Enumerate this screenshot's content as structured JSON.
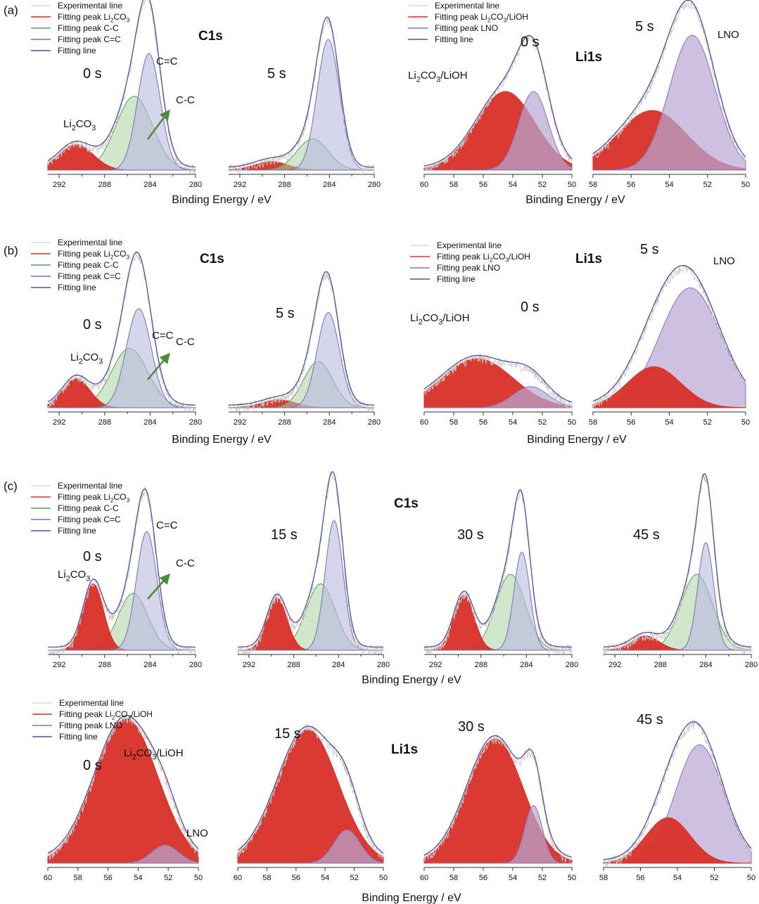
{
  "colors": {
    "experimental": "#c8c8c8",
    "li2co3": "#d73027",
    "cc": "#a9d3a0",
    "cc_line": "#5e9a5e",
    "ceqc": "#b9b9e0",
    "ceqc_line": "#7070b8",
    "lno": "#b8a6d6",
    "lno_line": "#8a70b8",
    "fitting": "#5a4f9a",
    "arrow": "#4c8a3c"
  },
  "chart_data": [
    {
      "id": "a-c1s-0s",
      "type": "line",
      "panel": "(a)",
      "element": "C1s",
      "title": "C1s",
      "time_label": "0 s",
      "xlabel": "Binding Energy / eV",
      "x_ticks": [
        292,
        290,
        288,
        286,
        284,
        282,
        280
      ],
      "x_tick_labels": [
        "292",
        "288",
        "284",
        "280"
      ],
      "xlim": [
        293,
        280
      ],
      "ylim": [
        0,
        1.0
      ],
      "legend": [
        "Experimental line",
        "Fitting peak Li2CO3",
        "Fitting peak C-C",
        "Fitting peak C=C",
        "Fitting line"
      ],
      "annotations": [
        "Li2CO3",
        "C=C",
        "C-C"
      ],
      "peaks": [
        {
          "component": "Li2CO3",
          "center": 290.5,
          "height": 0.18,
          "width": 1.5
        },
        {
          "component": "C-C",
          "center": 285.4,
          "height": 0.52,
          "width": 1.6
        },
        {
          "component": "C=C",
          "center": 284.1,
          "height": 0.82,
          "width": 1.0
        }
      ]
    },
    {
      "id": "a-c1s-5s",
      "type": "line",
      "panel": "(a)",
      "element": "C1s",
      "time_label": "5 s",
      "xlabel": "Binding Energy / eV",
      "x_ticks": [
        292,
        290,
        288,
        286,
        284,
        282,
        280
      ],
      "x_tick_labels": [
        "292",
        "288",
        "284",
        "280"
      ],
      "xlim": [
        293,
        280
      ],
      "ylim": [
        0,
        1.0
      ],
      "peaks": [
        {
          "component": "Li2CO3",
          "center": 289.2,
          "height": 0.06,
          "width": 1.5
        },
        {
          "component": "C-C",
          "center": 285.5,
          "height": 0.22,
          "width": 1.4
        },
        {
          "component": "C=C",
          "center": 284.1,
          "height": 0.92,
          "width": 1.0
        }
      ]
    },
    {
      "id": "a-li1s-0s",
      "type": "line",
      "panel": "(a)",
      "element": "Li1s",
      "title": "Li1s",
      "time_label": "0 s",
      "xlabel": "Binding Energy / eV",
      "x_ticks": [
        60,
        58,
        56,
        54,
        52,
        50
      ],
      "x_tick_labels": [
        "60",
        "58",
        "56",
        "54",
        "52",
        "50"
      ],
      "xlim": [
        60,
        50
      ],
      "ylim": [
        0,
        1.0
      ],
      "legend": [
        "Experimental line",
        "Fitting peak Li2CO3/LiOH",
        "Fitting peak LNO",
        "Fitting line"
      ],
      "annotations": [
        "Li2CO3/LiOH"
      ],
      "peaks": [
        {
          "component": "Li2CO3/LiOH",
          "center": 54.5,
          "height": 0.65,
          "width": 2.0
        },
        {
          "component": "LNO",
          "center": 52.6,
          "height": 0.65,
          "width": 1.0
        }
      ]
    },
    {
      "id": "a-li1s-5s",
      "type": "line",
      "panel": "(a)",
      "element": "Li1s",
      "time_label": "5 s",
      "xlabel": "Binding Energy / eV",
      "x_ticks": [
        58,
        56,
        54,
        52,
        50
      ],
      "x_tick_labels": [
        "58",
        "56",
        "54",
        "52",
        "50"
      ],
      "xlim": [
        58,
        50
      ],
      "ylim": [
        0,
        1.0
      ],
      "annotations": [
        "LNO"
      ],
      "peaks": [
        {
          "component": "Li2CO3/LiOH",
          "center": 54.9,
          "height": 0.42,
          "width": 1.8
        },
        {
          "component": "LNO",
          "center": 52.8,
          "height": 0.95,
          "width": 1.2
        }
      ]
    },
    {
      "id": "b-c1s-0s",
      "type": "line",
      "panel": "(b)",
      "element": "C1s",
      "title": "C1s",
      "time_label": "0 s",
      "xlabel": "Binding Energy / eV",
      "x_ticks": [
        292,
        290,
        288,
        286,
        284,
        282,
        280
      ],
      "x_tick_labels": [
        "292",
        "288",
        "284",
        "280"
      ],
      "xlim": [
        293,
        280
      ],
      "ylim": [
        0,
        1.0
      ],
      "legend": [
        "Experimental line",
        "Fitting peak Li2CO3",
        "Fitting peak C-C",
        "Fitting peak C=C",
        "Fitting line"
      ],
      "annotations": [
        "Li2CO3",
        "C=C",
        "C-C"
      ],
      "peaks": [
        {
          "component": "Li2CO3",
          "center": 290.5,
          "height": 0.22,
          "width": 1.2
        },
        {
          "component": "C-C",
          "center": 285.8,
          "height": 0.45,
          "width": 1.6
        },
        {
          "component": "C=C",
          "center": 285.0,
          "height": 0.75,
          "width": 1.1
        }
      ]
    },
    {
      "id": "b-c1s-5s",
      "type": "line",
      "panel": "(b)",
      "element": "C1s",
      "time_label": "5 s",
      "xlabel": "Binding Energy / eV",
      "x_ticks": [
        292,
        290,
        288,
        286,
        284,
        282,
        280
      ],
      "x_tick_labels": [
        "292",
        "288",
        "284",
        "280"
      ],
      "xlim": [
        293,
        280
      ],
      "ylim": [
        0,
        1.0
      ],
      "peaks": [
        {
          "component": "Li2CO3",
          "center": 288.5,
          "height": 0.06,
          "width": 1.5
        },
        {
          "component": "C-C",
          "center": 285.0,
          "height": 0.35,
          "width": 1.3
        },
        {
          "component": "C=C",
          "center": 284.1,
          "height": 0.72,
          "width": 1.0
        }
      ]
    },
    {
      "id": "b-li1s-0s",
      "type": "line",
      "panel": "(b)",
      "element": "Li1s",
      "title": "Li1s",
      "time_label": "0 s",
      "xlabel": "Binding Energy / eV",
      "x_ticks": [
        60,
        58,
        56,
        54,
        52,
        50
      ],
      "x_tick_labels": [
        "60",
        "58",
        "56",
        "54",
        "52",
        "50"
      ],
      "xlim": [
        60,
        50
      ],
      "ylim": [
        0,
        1.0
      ],
      "legend": [
        "Experimental line",
        "Fitting peak Li2CO3/LiOH",
        "Fitting peak LNO",
        "Fitting line"
      ],
      "annotations": [
        "Li2CO3/LiOH"
      ],
      "peaks": [
        {
          "component": "Li2CO3/LiOH",
          "center": 56.4,
          "height": 0.35,
          "width": 2.4
        },
        {
          "component": "LNO",
          "center": 52.8,
          "height": 0.15,
          "width": 1.2
        }
      ]
    },
    {
      "id": "b-li1s-5s",
      "type": "line",
      "panel": "(b)",
      "element": "Li1s",
      "time_label": "5 s",
      "xlabel": "Binding Energy / eV",
      "x_ticks": [
        58,
        56,
        54,
        52,
        50
      ],
      "x_tick_labels": [
        "58",
        "56",
        "54",
        "52",
        "50"
      ],
      "xlim": [
        58,
        50
      ],
      "ylim": [
        0,
        1.0
      ],
      "annotations": [
        "LNO"
      ],
      "peaks": [
        {
          "component": "Li2CO3/LiOH",
          "center": 54.8,
          "height": 0.28,
          "width": 1.4
        },
        {
          "component": "LNO",
          "center": 52.9,
          "height": 0.82,
          "width": 1.6
        }
      ]
    },
    {
      "id": "c-c1s-0s",
      "type": "line",
      "panel": "(c)",
      "element": "C1s",
      "time_label": "0 s",
      "xlabel": "Binding Energy / eV",
      "x_ticks": [
        292,
        290,
        288,
        286,
        284,
        282,
        280
      ],
      "x_tick_labels": [
        "292",
        "288",
        "284",
        "280"
      ],
      "xlim": [
        293,
        280
      ],
      "ylim": [
        0,
        1.0
      ],
      "legend": [
        "Experimental line",
        "Fitting peak Li2CO3",
        "Fitting peak C-C",
        "Fitting peak C=C",
        "Fitting line"
      ],
      "annotations": [
        "Li2CO3",
        "C=C",
        "C-C"
      ],
      "peaks": [
        {
          "component": "Li2CO3",
          "center": 289.0,
          "height": 0.42,
          "width": 0.9
        },
        {
          "component": "C-C",
          "center": 285.5,
          "height": 0.36,
          "width": 1.3
        },
        {
          "component": "C=C",
          "center": 284.3,
          "height": 0.75,
          "width": 0.9
        }
      ]
    },
    {
      "id": "c-c1s-15s",
      "type": "line",
      "panel": "(c)",
      "element": "C1s",
      "title": "C1s",
      "time_label": "15 s",
      "xlabel": "",
      "x_ticks": [
        292,
        290,
        288,
        286,
        284,
        282,
        280
      ],
      "x_tick_labels": [
        "292",
        "288",
        "284",
        "280"
      ],
      "xlim": [
        293,
        280
      ],
      "ylim": [
        0,
        1.0
      ],
      "peaks": [
        {
          "component": "Li2CO3",
          "center": 289.5,
          "height": 0.33,
          "width": 0.9
        },
        {
          "component": "C-C",
          "center": 285.6,
          "height": 0.42,
          "width": 1.3
        },
        {
          "component": "C=C",
          "center": 284.4,
          "height": 0.82,
          "width": 0.8
        }
      ]
    },
    {
      "id": "c-c1s-30s",
      "type": "line",
      "panel": "(c)",
      "element": "C1s",
      "time_label": "30 s",
      "xlabel": "Binding Energy / eV",
      "x_ticks": [
        292,
        290,
        288,
        286,
        284,
        282,
        280
      ],
      "x_tick_labels": [
        "292",
        "288",
        "284",
        "280"
      ],
      "xlim": [
        293,
        280
      ],
      "ylim": [
        0,
        1.0
      ],
      "peaks": [
        {
          "component": "Li2CO3",
          "center": 289.5,
          "height": 0.35,
          "width": 0.9
        },
        {
          "component": "C-C",
          "center": 285.4,
          "height": 0.48,
          "width": 1.3
        },
        {
          "component": "C=C",
          "center": 284.4,
          "height": 0.62,
          "width": 0.7
        }
      ]
    },
    {
      "id": "c-c1s-45s",
      "type": "line",
      "panel": "(c)",
      "element": "C1s",
      "time_label": "45 s",
      "xlabel": "",
      "x_ticks": [
        292,
        290,
        288,
        286,
        284,
        282,
        280
      ],
      "x_tick_labels": [
        "292",
        "288",
        "284",
        "280"
      ],
      "xlim": [
        293,
        280
      ],
      "ylim": [
        0,
        1.0
      ],
      "peaks": [
        {
          "component": "Li2CO3",
          "center": 289.3,
          "height": 0.09,
          "width": 1.2
        },
        {
          "component": "C-C",
          "center": 284.8,
          "height": 0.48,
          "width": 1.4
        },
        {
          "component": "C=C",
          "center": 284.0,
          "height": 0.68,
          "width": 0.7
        }
      ]
    },
    {
      "id": "c-li1s-0s",
      "type": "line",
      "panel": "(c)",
      "element": "Li1s",
      "time_label": "0 s",
      "xlabel": "",
      "x_ticks": [
        60,
        58,
        56,
        54,
        52,
        50
      ],
      "x_tick_labels": [
        "60",
        "58",
        "56",
        "54",
        "52",
        "50"
      ],
      "xlim": [
        60,
        50
      ],
      "ylim": [
        0,
        1.0
      ],
      "legend": [
        "Experimental line",
        "Fitting peak Li2CO3/LiOH",
        "Fitting peak LNO",
        "Fitting line"
      ],
      "annotations": [
        "Li2CO3/LiOH",
        "LNO"
      ],
      "peaks": [
        {
          "component": "Li2CO3/LiOH",
          "center": 54.8,
          "height": 0.95,
          "width": 2.1
        },
        {
          "component": "LNO",
          "center": 52.2,
          "height": 0.12,
          "width": 0.9
        }
      ]
    },
    {
      "id": "c-li1s-15s",
      "type": "line",
      "panel": "(c)",
      "element": "Li1s",
      "time_label": "15 s",
      "xlabel": "",
      "x_ticks": [
        60,
        58,
        56,
        54,
        52,
        50
      ],
      "x_tick_labels": [
        "60",
        "58",
        "56",
        "54",
        "52",
        "50"
      ],
      "xlim": [
        60,
        50
      ],
      "ylim": [
        0,
        1.0
      ],
      "peaks": [
        {
          "component": "Li2CO3/LiOH",
          "center": 55.2,
          "height": 0.88,
          "width": 2.1
        },
        {
          "component": "LNO",
          "center": 52.5,
          "height": 0.22,
          "width": 0.9
        }
      ]
    },
    {
      "id": "c-li1s-30s",
      "type": "line",
      "panel": "(c)",
      "element": "Li1s",
      "title": "Li1s",
      "time_label": "30 s",
      "xlabel": "Binding Energy / eV",
      "x_ticks": [
        60,
        58,
        56,
        54,
        52,
        50
      ],
      "x_tick_labels": [
        "60",
        "58",
        "56",
        "54",
        "52",
        "50"
      ],
      "xlim": [
        60,
        50
      ],
      "ylim": [
        0,
        1.0
      ],
      "peaks": [
        {
          "component": "Li2CO3/LiOH",
          "center": 55.2,
          "height": 0.82,
          "width": 1.9
        },
        {
          "component": "LNO",
          "center": 52.6,
          "height": 0.38,
          "width": 0.6
        }
      ]
    },
    {
      "id": "c-li1s-45s",
      "type": "line",
      "panel": "(c)",
      "element": "Li1s",
      "time_label": "45 s",
      "xlabel": "",
      "x_ticks": [
        58,
        56,
        54,
        52,
        50
      ],
      "x_tick_labels": [
        "58",
        "56",
        "54",
        "52",
        "50"
      ],
      "xlim": [
        58,
        50
      ],
      "ylim": [
        0,
        1.0
      ],
      "peaks": [
        {
          "component": "Li2CO3/LiOH",
          "center": 54.5,
          "height": 0.3,
          "width": 1.2
        },
        {
          "component": "LNO",
          "center": 52.8,
          "height": 0.78,
          "width": 1.3
        }
      ]
    }
  ]
}
